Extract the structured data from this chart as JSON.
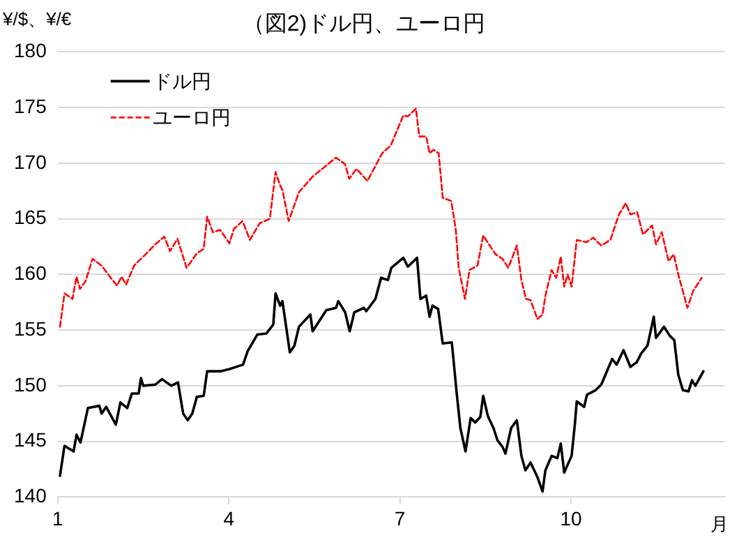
{
  "chart_data": {
    "type": "line",
    "title": "（図2)ドル円、ユーロ円",
    "ylabel": "¥/$、¥/€",
    "xlabel": "月",
    "xlim": [
      1,
      12.7
    ],
    "xticks": [
      1,
      4,
      7,
      10
    ],
    "ylim": [
      140,
      180
    ],
    "yticks": [
      140,
      145,
      150,
      155,
      160,
      165,
      170,
      175,
      180
    ],
    "grid": "y",
    "legend": "top left",
    "marker": "none",
    "series": [
      {
        "name": "ドル円",
        "color": "#000000",
        "line_style": "solid",
        "x": [
          1.04,
          1.12,
          1.28,
          1.33,
          1.4,
          1.53,
          1.73,
          1.77,
          1.85,
          2.02,
          2.1,
          2.22,
          2.3,
          2.42,
          2.46,
          2.5,
          2.71,
          2.83,
          2.99,
          3.11,
          3.2,
          3.28,
          3.36,
          3.44,
          3.56,
          3.62,
          3.85,
          4.01,
          4.25,
          4.33,
          4.5,
          4.66,
          4.78,
          4.82,
          4.9,
          4.94,
          4.98,
          5.07,
          5.15,
          5.23,
          5.43,
          5.47,
          5.71,
          5.88,
          5.92,
          6.04,
          6.12,
          6.2,
          6.37,
          6.41,
          6.57,
          6.67,
          6.79,
          6.85,
          7.06,
          7.14,
          7.3,
          7.36,
          7.46,
          7.52,
          7.57,
          7.67,
          7.75,
          7.91,
          7.99,
          8.06,
          8.15,
          8.24,
          8.32,
          8.41,
          8.46,
          8.54,
          8.64,
          8.71,
          8.8,
          8.85,
          8.95,
          9.05,
          9.13,
          9.2,
          9.29,
          9.41,
          9.5,
          9.55,
          9.66,
          9.76,
          9.82,
          9.88,
          10.01,
          10.07,
          10.1,
          10.23,
          10.28,
          10.43,
          10.53,
          10.72,
          10.8,
          10.92,
          11.04,
          11.15,
          11.23,
          11.34,
          11.45,
          11.49,
          11.63,
          11.73,
          11.81,
          11.88,
          11.96,
          12.06,
          12.12,
          12.18,
          12.32
        ],
        "values": [
          141.9,
          144.6,
          144.1,
          145.6,
          144.9,
          148,
          148.2,
          147.5,
          148.1,
          146.5,
          148.5,
          148,
          149.3,
          149.3,
          150.7,
          150,
          150.1,
          150.6,
          150,
          150.3,
          147.5,
          146.9,
          147.5,
          149,
          149.1,
          151.3,
          151.3,
          151.5,
          151.9,
          153.1,
          154.6,
          154.7,
          155.5,
          158.3,
          157.2,
          157.6,
          156.2,
          153,
          153.6,
          155.3,
          156.4,
          154.9,
          156.8,
          157,
          157.6,
          156.6,
          154.9,
          156.6,
          157,
          156.7,
          157.8,
          159.7,
          159.5,
          160.6,
          161.5,
          160.7,
          161.5,
          157.8,
          158.1,
          156.2,
          157.2,
          156.9,
          153.8,
          153.9,
          149.6,
          146.2,
          144.1,
          147.1,
          146.7,
          147.2,
          149.1,
          147.3,
          146.2,
          145.1,
          144.5,
          143.9,
          146.2,
          146.9,
          143.7,
          142.4,
          143.1,
          141.8,
          140.5,
          142.4,
          143.7,
          143.5,
          144.8,
          142.2,
          143.7,
          146.7,
          148.6,
          148.1,
          149.2,
          149.6,
          150.1,
          152.4,
          151.9,
          153.2,
          151.7,
          152.1,
          152.9,
          153.6,
          156.2,
          154.3,
          155.3,
          154.5,
          154.1,
          151,
          149.6,
          149.5,
          150.5,
          150,
          151.3
        ]
      },
      {
        "name": "ユーロ円",
        "color": "#ff0000",
        "line_style": "dashed",
        "x": [
          1.04,
          1.12,
          1.26,
          1.33,
          1.39,
          1.49,
          1.61,
          1.77,
          1.93,
          2.04,
          2.12,
          2.2,
          2.34,
          2.5,
          2.71,
          2.87,
          2.97,
          3.1,
          3.26,
          3.44,
          3.56,
          3.62,
          3.72,
          3.85,
          4.01,
          4.09,
          4.24,
          4.37,
          4.54,
          4.72,
          4.82,
          4.9,
          4.94,
          5.05,
          5.23,
          5.47,
          5.88,
          6.04,
          6.11,
          6.24,
          6.43,
          6.69,
          6.84,
          7.06,
          7.14,
          7.28,
          7.34,
          7.46,
          7.52,
          7.59,
          7.68,
          7.75,
          7.9,
          7.98,
          8.03,
          8.14,
          8.22,
          8.36,
          8.46,
          8.6,
          8.68,
          8.8,
          8.9,
          9.05,
          9.13,
          9.21,
          9.29,
          9.41,
          9.5,
          9.55,
          9.66,
          9.74,
          9.82,
          9.88,
          9.94,
          10.01,
          10.1,
          10.27,
          10.39,
          10.53,
          10.69,
          10.84,
          10.96,
          11.04,
          11.16,
          11.26,
          11.42,
          11.49,
          11.59,
          11.71,
          11.8,
          11.88,
          12.04,
          12.14,
          12.29
        ],
        "values": [
          155.3,
          158.3,
          157.8,
          159.8,
          158.7,
          159.4,
          161.4,
          160.8,
          159.7,
          159,
          159.8,
          159.1,
          160.8,
          161.6,
          162.7,
          163.4,
          162.1,
          163.2,
          160.6,
          161.9,
          162.3,
          165.2,
          163.8,
          164,
          162.8,
          164.1,
          164.8,
          163.1,
          164.6,
          165,
          169.2,
          168,
          167.6,
          164.8,
          167.4,
          168.8,
          170.5,
          169.9,
          168.6,
          169.5,
          168.4,
          170.9,
          171.6,
          174.3,
          174.2,
          174.9,
          172.4,
          172.4,
          170.9,
          171.2,
          170.9,
          166.9,
          166.6,
          164,
          160.6,
          157.8,
          160.4,
          160.8,
          163.5,
          162.4,
          161.8,
          161.4,
          160.6,
          162.6,
          159.5,
          157.8,
          157.7,
          156,
          156.4,
          158.1,
          160.4,
          159.7,
          161.6,
          158.9,
          160,
          158.9,
          163.1,
          162.9,
          163.3,
          162.6,
          163.1,
          165.4,
          166.4,
          165.4,
          165.6,
          163.6,
          164.4,
          162.7,
          163.8,
          161.2,
          161.8,
          160,
          157,
          158.5,
          159.7
        ]
      }
    ]
  }
}
